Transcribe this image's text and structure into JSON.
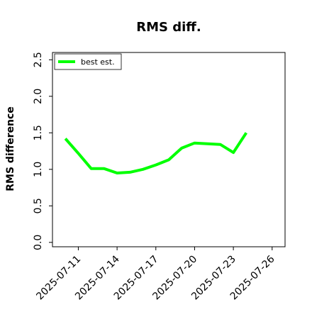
{
  "chart_data": {
    "type": "line",
    "title": "RMS diff.",
    "xlabel": "",
    "ylabel": "RMS difference",
    "x": [
      "2025-07-10",
      "2025-07-11",
      "2025-07-12",
      "2025-07-13",
      "2025-07-14",
      "2025-07-15",
      "2025-07-16",
      "2025-07-17",
      "2025-07-18",
      "2025-07-19",
      "2025-07-20",
      "2025-07-21",
      "2025-07-22",
      "2025-07-23",
      "2025-07-24"
    ],
    "series": [
      {
        "name": "best est.",
        "color": "#00ff00",
        "values": [
          1.42,
          1.22,
          1.01,
          1.01,
          0.95,
          0.96,
          1.0,
          1.06,
          1.13,
          1.29,
          1.36,
          1.35,
          1.34,
          1.23,
          1.5
        ]
      }
    ],
    "xticks": [
      "2025-07-11",
      "2025-07-14",
      "2025-07-17",
      "2025-07-20",
      "2025-07-23",
      "2025-07-26"
    ],
    "yticks": [
      "0.0",
      "0.5",
      "1.0",
      "1.5",
      "2.0",
      "2.5"
    ],
    "xlim": [
      "2025-07-09",
      "2025-07-27"
    ],
    "ylim": [
      -0.06,
      2.6
    ],
    "legend": "top-left",
    "grid": false
  }
}
